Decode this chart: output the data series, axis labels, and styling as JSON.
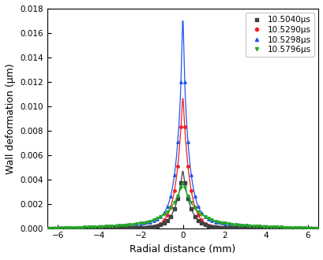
{
  "title": "",
  "xlabel": "Radial distance (mm)",
  "ylabel": "Wall deformation (μm)",
  "xlim": [
    -6.5,
    6.5
  ],
  "ylim": [
    0,
    0.018
  ],
  "yticks": [
    0.0,
    0.002,
    0.004,
    0.006,
    0.008,
    0.01,
    0.012,
    0.014,
    0.016,
    0.018
  ],
  "xticks": [
    -6,
    -4,
    -2,
    0,
    2,
    4,
    6
  ],
  "series": [
    {
      "label": "10.5040μs",
      "color": "#404040",
      "marker": "s",
      "peak": 0.00475,
      "decay": 2.8,
      "pedestal": 8e-05,
      "pedestal_decay": 0.45,
      "marker_size": 2.5,
      "zorder": 4
    },
    {
      "label": "10.5290μs",
      "color": "#ee2222",
      "marker": "o",
      "peak": 0.011,
      "decay": 3.2,
      "pedestal": 8e-05,
      "pedestal_decay": 0.45,
      "marker_size": 2.5,
      "zorder": 3
    },
    {
      "label": "10.5298μs",
      "color": "#2255ee",
      "marker": "^",
      "peak": 0.0148,
      "decay": 3.5,
      "pedestal": 0.001,
      "pedestal_decay": 0.38,
      "marker_size": 2.5,
      "zorder": 2
    },
    {
      "label": "10.5796μs",
      "color": "#22aa22",
      "marker": "v",
      "peak": 0.0031,
      "decay": 1.8,
      "pedestal": 0.0,
      "pedestal_decay": 0.3,
      "marker_size": 2.5,
      "zorder": 5
    }
  ],
  "n_points": 500,
  "n_markers": 80,
  "legend_fontsize": 7.5,
  "axis_fontsize": 9,
  "tick_fontsize": 7.5,
  "linewidth": 0.9
}
